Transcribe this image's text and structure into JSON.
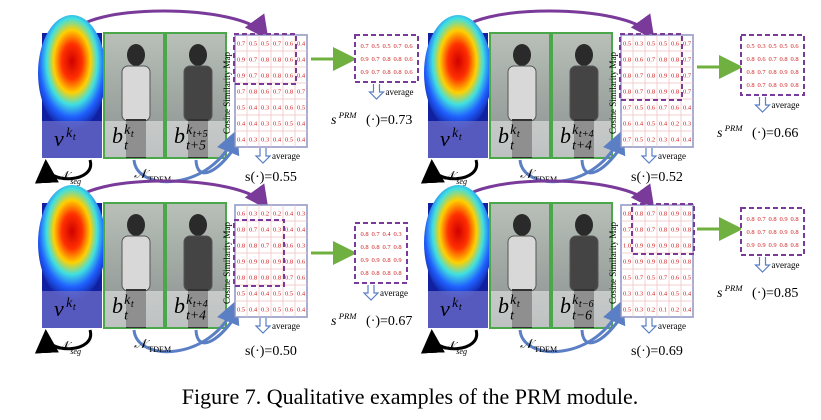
{
  "panels": [
    {
      "heatmap_label": {
        "base": "v",
        "sup": "k",
        "sup_sub": "t"
      },
      "crop1_label": {
        "base": "b",
        "sup": "k",
        "sup_sub": "t",
        "sub": "t"
      },
      "crop2_label": {
        "base": "b",
        "sup": "k",
        "sup_sub": "t+5",
        "sub": "t+5"
      },
      "seg_label": {
        "base": "𝒩",
        "sub": "seg"
      },
      "tdem_label": {
        "base": "𝒩",
        "sub": "TDEM"
      },
      "map_label": "Cosine Similarity Map",
      "matrix": [
        [
          "0.7",
          "0.5",
          "0.5",
          "0.7",
          "0.6",
          "0.4"
        ],
        [
          "0.9",
          "0.7",
          "0.8",
          "0.8",
          "0.6",
          "0.4"
        ],
        [
          "0.9",
          "0.7",
          "0.8",
          "0.8",
          "0.6",
          "0.4"
        ],
        [
          "0.7",
          "0.8",
          "0.6",
          "0.7",
          "0.8",
          "0.7"
        ],
        [
          "0.5",
          "0.4",
          "0.3",
          "0.4",
          "0.6",
          "0.5"
        ],
        [
          "0.4",
          "0.4",
          "0.3",
          "0.5",
          "0.5",
          "0.4"
        ],
        [
          "0.4",
          "0.3",
          "0.3",
          "0.4",
          "0.5",
          "0.4"
        ]
      ],
      "prm_matrix": [
        [
          "0.7",
          "0.5",
          "0.5",
          "0.7",
          "0.6"
        ],
        [
          "0.9",
          "0.7",
          "0.8",
          "0.8",
          "0.6"
        ],
        [
          "0.9",
          "0.7",
          "0.8",
          "0.8",
          "0.6"
        ]
      ],
      "average_1": "average",
      "average_2": "average",
      "score": "s(·)=0.55",
      "prm_score": {
        "base": "s",
        "sup": "PRM",
        "rest": "(·)=0.73"
      }
    },
    {
      "heatmap_label": {
        "base": "v",
        "sup": "k",
        "sup_sub": "t"
      },
      "crop1_label": {
        "base": "b",
        "sup": "k",
        "sup_sub": "t",
        "sub": "t"
      },
      "crop2_label": {
        "base": "b",
        "sup": "k",
        "sup_sub": "t+4",
        "sub": "t+4"
      },
      "seg_label": {
        "base": "𝒩",
        "sub": "seg"
      },
      "tdem_label": {
        "base": "𝒩",
        "sub": "TDEM"
      },
      "map_label": "Cosine Similarity Map",
      "matrix": [
        [
          "0.5",
          "0.3",
          "0.5",
          "0.5",
          "0.6",
          "0.7"
        ],
        [
          "0.8",
          "0.6",
          "0.7",
          "0.8",
          "0.8",
          "0.7"
        ],
        [
          "0.8",
          "0.7",
          "0.8",
          "0.9",
          "0.8",
          "0.7"
        ],
        [
          "0.8",
          "0.7",
          "0.8",
          "0.9",
          "0.8",
          "0.7"
        ],
        [
          "0.7",
          "0.5",
          "0.6",
          "0.7",
          "0.6",
          "0.4"
        ],
        [
          "0.6",
          "0.4",
          "0.5",
          "0.4",
          "0.2",
          "0.3"
        ],
        [
          "0.7",
          "0.5",
          "0.2",
          "0.3",
          "0.4",
          "0.4"
        ]
      ],
      "prm_matrix": [
        [
          "0.5",
          "0.3",
          "0.5",
          "0.5",
          "0.6"
        ],
        [
          "0.8",
          "0.6",
          "0.7",
          "0.8",
          "0.8"
        ],
        [
          "0.8",
          "0.7",
          "0.8",
          "0.9",
          "0.8"
        ],
        [
          "0.8",
          "0.7",
          "0.8",
          "0.9",
          "0.8"
        ]
      ],
      "average_1": "average",
      "average_2": "average",
      "score": "s(·)=0.52",
      "prm_score": {
        "base": "s",
        "sup": "PRM",
        "rest": "(·)=0.66"
      }
    },
    {
      "heatmap_label": {
        "base": "v",
        "sup": "k",
        "sup_sub": "t"
      },
      "crop1_label": {
        "base": "b",
        "sup": "k",
        "sup_sub": "t",
        "sub": "t"
      },
      "crop2_label": {
        "base": "b",
        "sup": "k",
        "sup_sub": "t+4",
        "sub": "t+4"
      },
      "seg_label": {
        "base": "𝒩",
        "sub": "seg"
      },
      "tdem_label": {
        "base": "𝒩",
        "sub": "TDEM"
      },
      "map_label": "Cosine Similarity Map",
      "matrix": [
        [
          "0.6",
          "0.3",
          "0.2",
          "0.2",
          "0.4",
          "0.3"
        ],
        [
          "0.8",
          "0.7",
          "0.4",
          "0.3",
          "0.4",
          "0.4"
        ],
        [
          "0.8",
          "0.8",
          "0.7",
          "0.8",
          "0.6",
          "0.3"
        ],
        [
          "0.9",
          "0.9",
          "0.8",
          "0.9",
          "0.8",
          "0.6"
        ],
        [
          "0.8",
          "0.8",
          "0.8",
          "0.8",
          "0.7",
          "0.6"
        ],
        [
          "0.5",
          "0.4",
          "0.4",
          "0.5",
          "0.5",
          "0.4"
        ],
        [
          "0.5",
          "0.4",
          "0.3",
          "0.5",
          "0.6",
          "0.4"
        ]
      ],
      "prm_matrix": [
        [
          "0.8",
          "0.7",
          "0.4",
          "0.3"
        ],
        [
          "0.8",
          "0.8",
          "0.7",
          "0.8"
        ],
        [
          "0.9",
          "0.9",
          "0.8",
          "0.9"
        ],
        [
          "0.8",
          "0.8",
          "0.8",
          "0.8"
        ]
      ],
      "average_1": "average",
      "average_2": "average",
      "score": "s(·)=0.50",
      "prm_score": {
        "base": "s",
        "sup": "PRM",
        "rest": "(·)=0.67"
      }
    },
    {
      "heatmap_label": {
        "base": "v",
        "sup": "k",
        "sup_sub": "t"
      },
      "crop1_label": {
        "base": "b",
        "sup": "k",
        "sup_sub": "t",
        "sub": "t"
      },
      "crop2_label": {
        "base": "b",
        "sup": "k",
        "sup_sub": "t−6",
        "sub": "t−6"
      },
      "seg_label": {
        "base": "𝒩",
        "sub": "seg"
      },
      "tdem_label": {
        "base": "𝒩",
        "sub": "TDEM"
      },
      "map_label": "Cosine Similarity Map",
      "matrix": [
        [
          "0.8",
          "0.8",
          "0.7",
          "0.8",
          "0.9",
          "0.8"
        ],
        [
          "0.7",
          "0.8",
          "0.7",
          "0.8",
          "0.9",
          "0.8"
        ],
        [
          "1.0",
          "0.9",
          "0.9",
          "0.9",
          "0.8",
          "0.8"
        ],
        [
          "0.9",
          "0.9",
          "0.9",
          "0.8",
          "0.9",
          "0.8"
        ],
        [
          "0.5",
          "0.7",
          "0.5",
          "0.7",
          "0.6",
          "0.5"
        ],
        [
          "0.3",
          "0.3",
          "0.4",
          "0.4",
          "0.5",
          "0.4"
        ],
        [
          "0.5",
          "0.3",
          "0.2",
          "0.1",
          "0.2",
          "0.4"
        ]
      ],
      "prm_matrix": [
        [
          "0.8",
          "0.7",
          "0.8",
          "0.9",
          "0.8"
        ],
        [
          "0.8",
          "0.7",
          "0.8",
          "0.9",
          "0.8"
        ],
        [
          "0.9",
          "0.9",
          "0.9",
          "0.8",
          "0.8"
        ]
      ],
      "average_1": "average",
      "average_2": "average",
      "score": "s(·)=0.69",
      "prm_score": {
        "base": "s",
        "sup": "PRM",
        "rest": "(·)=0.85"
      }
    }
  ],
  "caption": "Figure 7. Qualitative examples of the PRM module."
}
